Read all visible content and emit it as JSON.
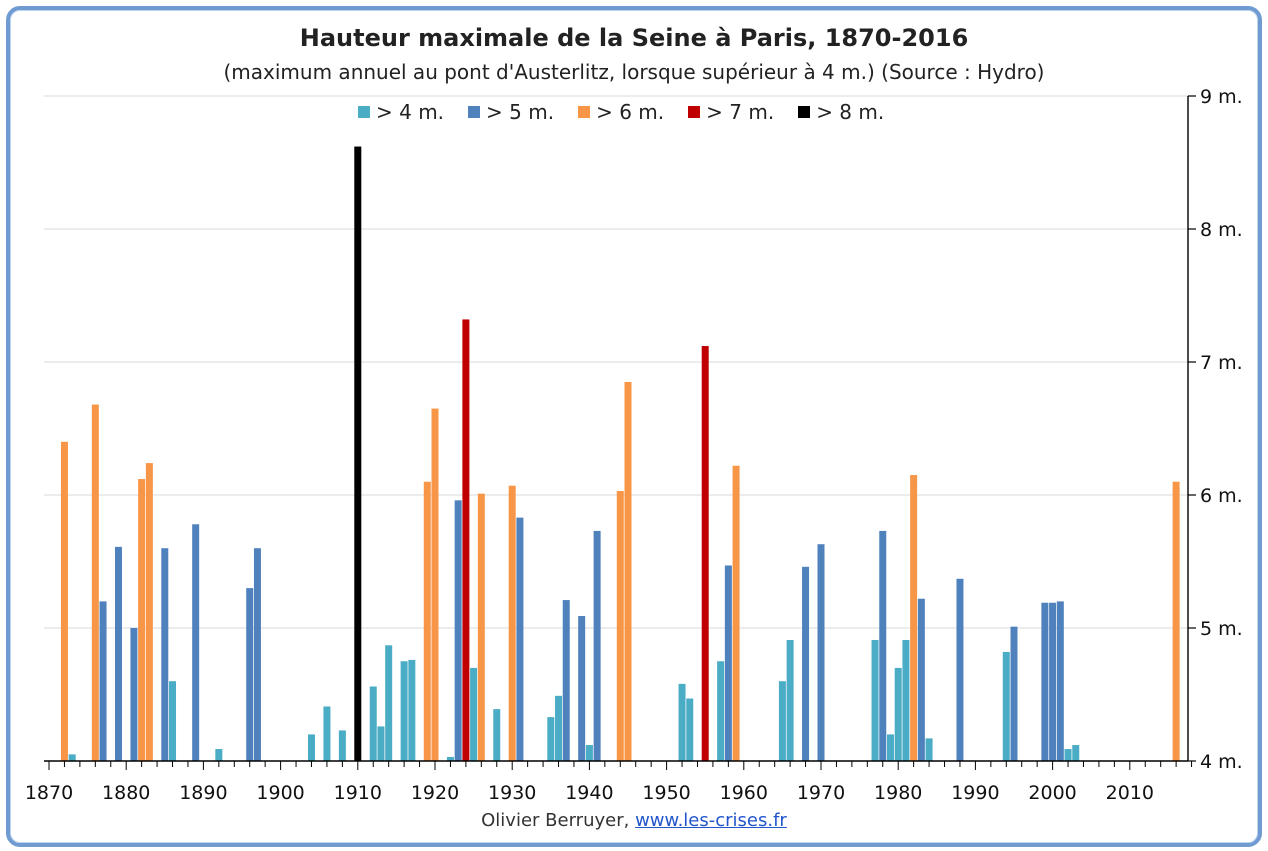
{
  "chart_data": {
    "type": "bar",
    "title": "Hauteur maximale de la Seine à Paris, 1870-2016",
    "subtitle": "(maximum annuel au pont d'Austerlitz, lorsque supérieur à 4 m.) (Source : Hydro)",
    "x_ticks": [
      "1870",
      "1880",
      "1890",
      "1900",
      "1910",
      "1920",
      "1930",
      "1940",
      "1950",
      "1960",
      "1970",
      "1980",
      "1990",
      "2000",
      "2010"
    ],
    "y_ticks": [
      "4 m.",
      "5 m.",
      "6 m.",
      "7 m.",
      "8 m.",
      "9 m."
    ],
    "xlim": [
      1870,
      2018
    ],
    "ylim": [
      4,
      9
    ],
    "y_axis_side": "right",
    "grid": true,
    "legend_position": "top-center",
    "categories": [
      {
        "label": "> 4 m.",
        "color": "#4bacc6"
      },
      {
        "label": "> 5 m.",
        "color": "#4f81bd"
      },
      {
        "label": "> 6 m.",
        "color": "#f79646"
      },
      {
        "label": "> 7 m.",
        "color": "#c00000"
      },
      {
        "label": "> 8 m.",
        "color": "#000000"
      }
    ],
    "points": [
      {
        "year": 1872,
        "value": 6.4
      },
      {
        "year": 1873,
        "value": 4.05
      },
      {
        "year": 1876,
        "value": 6.68
      },
      {
        "year": 1877,
        "value": 5.2
      },
      {
        "year": 1879,
        "value": 5.61
      },
      {
        "year": 1881,
        "value": 5.0
      },
      {
        "year": 1882,
        "value": 6.12
      },
      {
        "year": 1883,
        "value": 6.24
      },
      {
        "year": 1885,
        "value": 5.6
      },
      {
        "year": 1886,
        "value": 4.6
      },
      {
        "year": 1889,
        "value": 5.78
      },
      {
        "year": 1892,
        "value": 4.09
      },
      {
        "year": 1896,
        "value": 5.3
      },
      {
        "year": 1897,
        "value": 5.6
      },
      {
        "year": 1904,
        "value": 4.2
      },
      {
        "year": 1906,
        "value": 4.41
      },
      {
        "year": 1908,
        "value": 4.23
      },
      {
        "year": 1910,
        "value": 8.62
      },
      {
        "year": 1912,
        "value": 4.56
      },
      {
        "year": 1913,
        "value": 4.26
      },
      {
        "year": 1914,
        "value": 4.87
      },
      {
        "year": 1916,
        "value": 4.75
      },
      {
        "year": 1917,
        "value": 4.76
      },
      {
        "year": 1919,
        "value": 6.1
      },
      {
        "year": 1920,
        "value": 6.65
      },
      {
        "year": 1922,
        "value": 4.03
      },
      {
        "year": 1923,
        "value": 5.96
      },
      {
        "year": 1924,
        "value": 7.32
      },
      {
        "year": 1925,
        "value": 4.7
      },
      {
        "year": 1926,
        "value": 6.01
      },
      {
        "year": 1928,
        "value": 4.39
      },
      {
        "year": 1930,
        "value": 6.07
      },
      {
        "year": 1931,
        "value": 5.83
      },
      {
        "year": 1935,
        "value": 4.33
      },
      {
        "year": 1936,
        "value": 4.49
      },
      {
        "year": 1937,
        "value": 5.21
      },
      {
        "year": 1939,
        "value": 5.09
      },
      {
        "year": 1940,
        "value": 4.12
      },
      {
        "year": 1941,
        "value": 5.73
      },
      {
        "year": 1944,
        "value": 6.03
      },
      {
        "year": 1945,
        "value": 6.85
      },
      {
        "year": 1952,
        "value": 4.58
      },
      {
        "year": 1953,
        "value": 4.47
      },
      {
        "year": 1955,
        "value": 7.12
      },
      {
        "year": 1957,
        "value": 4.75
      },
      {
        "year": 1958,
        "value": 5.47
      },
      {
        "year": 1959,
        "value": 6.22
      },
      {
        "year": 1965,
        "value": 4.6
      },
      {
        "year": 1966,
        "value": 4.91
      },
      {
        "year": 1968,
        "value": 5.46
      },
      {
        "year": 1970,
        "value": 5.63
      },
      {
        "year": 1977,
        "value": 4.91
      },
      {
        "year": 1978,
        "value": 5.73
      },
      {
        "year": 1979,
        "value": 4.2
      },
      {
        "year": 1980,
        "value": 4.7
      },
      {
        "year": 1981,
        "value": 4.91
      },
      {
        "year": 1982,
        "value": 6.15
      },
      {
        "year": 1983,
        "value": 5.22
      },
      {
        "year": 1984,
        "value": 4.17
      },
      {
        "year": 1988,
        "value": 5.37
      },
      {
        "year": 1994,
        "value": 4.82
      },
      {
        "year": 1995,
        "value": 5.01
      },
      {
        "year": 1999,
        "value": 5.19
      },
      {
        "year": 2000,
        "value": 5.19
      },
      {
        "year": 2001,
        "value": 5.2
      },
      {
        "year": 2002,
        "value": 4.09
      },
      {
        "year": 2003,
        "value": 4.12
      },
      {
        "year": 2016,
        "value": 6.1
      }
    ]
  },
  "credit": {
    "author": "Olivier Berruyer,",
    "link": "www.les-crises.fr"
  }
}
